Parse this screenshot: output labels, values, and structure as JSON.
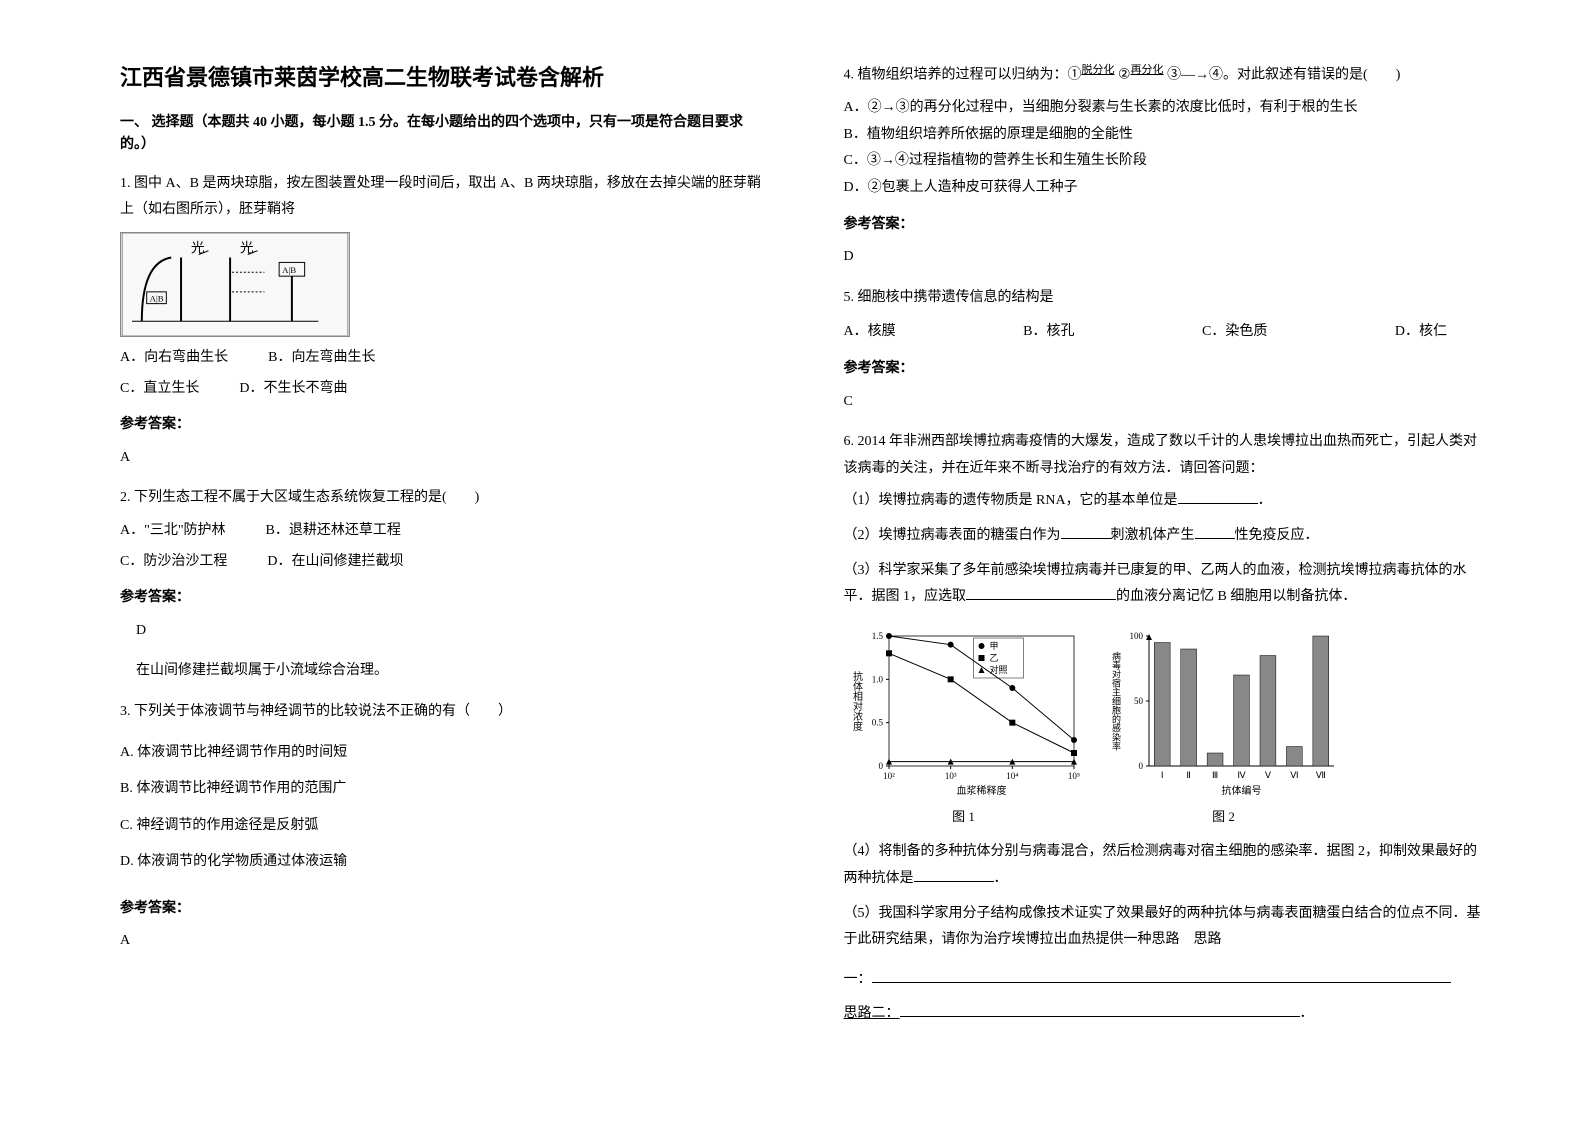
{
  "title": "江西省景德镇市莱茵学校高二生物联考试卷含解析",
  "section1_header": "一、 选择题（本题共 40 小题，每小题 1.5 分。在每小题给出的四个选项中，只有一项是符合题目要求的。）",
  "q1": {
    "text": "1. 图中 A、B 是两块琼脂，按左图装置处理一段时间后，取出 A、B 两块琼脂，移放在去掉尖端的胚芽鞘上（如右图所示），胚芽鞘将",
    "optA": "A．向右弯曲生长",
    "optB": "B．向左弯曲生长",
    "optC": "C．直立生长",
    "optD": "D．不生长不弯曲",
    "answer_label": "参考答案：",
    "answer": "A"
  },
  "q2": {
    "text": "2. 下列生态工程不属于大区域生态系统恢复工程的是(　　)",
    "optA": "A．\"三北\"防护林",
    "optB": "B．退耕还林还草工程",
    "optC": "C．防沙治沙工程",
    "optD": "D．在山间修建拦截坝",
    "answer_label": "参考答案：",
    "answer": "D",
    "explain": "在山间修建拦截坝属于小流域综合治理。"
  },
  "q3": {
    "text": "3. 下列关于体液调节与神经调节的比较说法不正确的有（　　）",
    "optA": "A. 体液调节比神经调节作用的时间短",
    "optB": "B. 体液调节比神经调节作用的范围广",
    "optC": "C. 神经调节的作用途径是反射弧",
    "optD": "D. 体液调节的化学物质通过体液运输",
    "answer_label": "参考答案：",
    "answer": "A"
  },
  "q4": {
    "text_prefix": "4. 植物组织培养的过程可以归纳为：①",
    "step1": "脱分化",
    "text_mid1": " ②",
    "step2": "再分化",
    "text_mid2": " ③—→④。对此叙述有错误的是(　　)",
    "optA": "A．②→③的再分化过程中，当细胞分裂素与生长素的浓度比低时，有利于根的生长",
    "optB": "B．植物组织培养所依据的原理是细胞的全能性",
    "optC": "C．③→④过程指植物的营养生长和生殖生长阶段",
    "optD": "D．②包裹上人造种皮可获得人工种子",
    "answer_label": "参考答案：",
    "answer": "D"
  },
  "q5": {
    "text": "5. 细胞核中携带遗传信息的结构是",
    "optA": "A．核膜",
    "optB": "B．核孔",
    "optC": "C．染色质",
    "optD": "D．核仁",
    "answer_label": "参考答案：",
    "answer": "C"
  },
  "q6": {
    "text": "6. 2014 年非洲西部埃博拉病毒疫情的大爆发，造成了数以千计的人患埃博拉出血热而死亡，引起人类对该病毒的关注，并在近年来不断寻找治疗的有效方法．请回答问题：",
    "sub1_prefix": "（1）埃博拉病毒的遗传物质是 RNA，它的基本单位是",
    "sub1_suffix": "．",
    "sub2_prefix": "（2）埃博拉病毒表面的糖蛋白作为",
    "sub2_mid": "刺激机体产生",
    "sub2_suffix": "性免疫反应．",
    "sub3_prefix": "（3）科学家采集了多年前感染埃博拉病毒并已康复的甲、乙两人的血液，检测抗埃博拉病毒抗体的水平．据图 1，应选取",
    "sub3_suffix": "的血液分离记忆 B 细胞用以制备抗体．",
    "sub4_prefix": "（4）将制备的多种抗体分别与病毒混合，然后检测病毒对宿主细胞的感染率．据图 2，抑制效果最好的两种抗体是",
    "sub4_suffix": "．",
    "sub5": "（5）我国科学家用分子结构成像技术证实了效果最好的两种抗体与病毒表面糖蛋白结合的位点不同．基于此研究结果，请你为治疗埃博拉出血热提供一种思路　思路",
    "sub5_line1": "一：",
    "sub5_line2": "思路二：",
    "sub5_suffix": "．"
  },
  "chart1": {
    "title": "图 1",
    "xlabel": "血浆稀释度",
    "ylabel": "抗体相对浓度",
    "xticks": [
      "10²",
      "10³",
      "10⁴",
      "10⁵"
    ],
    "yticks": [
      "0",
      "0.5",
      "1.0",
      "1.5"
    ],
    "legend": [
      "甲",
      "乙",
      "对照"
    ],
    "markers": [
      "●",
      "■",
      "▲"
    ],
    "series_jia": [
      1.5,
      1.4,
      0.9,
      0.3
    ],
    "series_yi": [
      1.3,
      1.0,
      0.5,
      0.15
    ],
    "series_ctrl": [
      0.05,
      0.05,
      0.05,
      0.05
    ],
    "line_color": "#000000",
    "grid_color": "#cccccc",
    "bg": "#ffffff"
  },
  "chart2": {
    "title": "图 2",
    "xlabel": "抗体编号",
    "ylabel": "病毒对宿主细胞的感染率",
    "xticks": [
      "Ⅰ",
      "Ⅱ",
      "Ⅲ",
      "Ⅳ",
      "Ⅴ",
      "Ⅵ",
      "Ⅶ"
    ],
    "yticks": [
      "0",
      "50",
      "100"
    ],
    "values": [
      95,
      90,
      10,
      70,
      85,
      15,
      100
    ],
    "bar_color": "#888888",
    "bg": "#ffffff"
  }
}
